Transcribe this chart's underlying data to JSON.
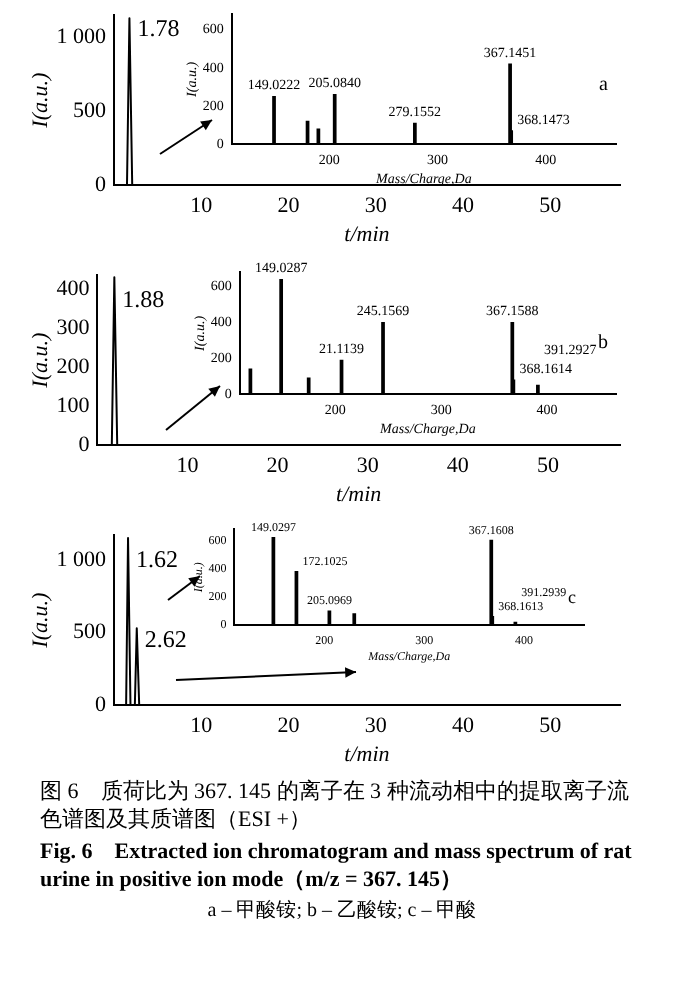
{
  "chart_data": [
    {
      "type": "line",
      "xlabel": "t/min",
      "ylabel": "I(a.u.)",
      "x": [
        0,
        1.5,
        1.78,
        2.1,
        58
      ],
      "values": [
        0,
        0,
        1130,
        0,
        0
      ],
      "color": "#000000",
      "marker": "none",
      "xlim": [
        0,
        58
      ],
      "xticks": [
        10,
        20,
        30,
        40,
        50
      ],
      "ylim": [
        0,
        1150
      ],
      "yticks": [
        0,
        500,
        {
          "value": 1000,
          "label": "1 000"
        }
      ],
      "annotations": [
        {
          "text": "1.78",
          "x": 1.78,
          "y": 1130
        }
      ]
    },
    {
      "type": "bar",
      "xlabel": "Mass/Charge,Da",
      "ylabel": "I(a.u.)",
      "x": [
        149.0222,
        180,
        190,
        205.084,
        279.1552,
        367.1451,
        368.1473
      ],
      "values": [
        250,
        120,
        80,
        260,
        110,
        420,
        70
      ],
      "color": "#000000",
      "xlim": [
        110,
        465
      ],
      "xticks": [
        200,
        300,
        400
      ],
      "ylim": [
        0,
        680
      ],
      "yticks": [
        0,
        200,
        400,
        600
      ],
      "annotations": [
        "a",
        {
          "text": "149.0222",
          "x": 149.0222,
          "y": 250
        },
        {
          "text": "205.0840",
          "x": 205.084,
          "y": 260
        },
        {
          "text": "279.1552",
          "x": 279.1552,
          "y": 110
        },
        {
          "text": "367.1451",
          "x": 367.1451,
          "y": 420
        },
        {
          "text": "368.1473",
          "x": 368.1473,
          "y": 70
        }
      ]
    },
    {
      "type": "line",
      "xlabel": "t/min",
      "ylabel": "I(a.u.)",
      "x": [
        0,
        1.6,
        1.88,
        2.2,
        58
      ],
      "values": [
        0,
        0,
        430,
        0,
        0
      ],
      "color": "#000000",
      "marker": "none",
      "xlim": [
        0,
        58
      ],
      "xticks": [
        10,
        20,
        30,
        40,
        50
      ],
      "ylim": [
        0,
        435
      ],
      "yticks": [
        0,
        100,
        200,
        300,
        400
      ],
      "annotations": [
        {
          "text": "1.88",
          "x": 1.88,
          "y": 400
        }
      ]
    },
    {
      "type": "bar",
      "xlabel": "Mass/Charge,Da",
      "ylabel": "I(a.u.)",
      "x": [
        120,
        149.0287,
        175,
        206,
        245.1569,
        367.1588,
        368.1614,
        391.2927
      ],
      "values": [
        140,
        640,
        90,
        190,
        400,
        400,
        80,
        50
      ],
      "color": "#000000",
      "xlim": [
        110,
        465
      ],
      "xticks": [
        200,
        300,
        400
      ],
      "ylim": [
        0,
        680
      ],
      "yticks": [
        0,
        200,
        400,
        600
      ],
      "annotations": [
        "b",
        {
          "text": "149.0287",
          "x": 149.0287,
          "y": 640
        },
        {
          "text": "21.1139",
          "x": 206,
          "y": 190
        },
        {
          "text": "245.1569",
          "x": 245.1569,
          "y": 400
        },
        {
          "text": "367.1588",
          "x": 367.1588,
          "y": 400
        },
        {
          "text": "368.1614",
          "x": 368.1614,
          "y": 80
        },
        {
          "text": "391.2927",
          "x": 391.2927,
          "y": 50
        }
      ]
    },
    {
      "type": "line",
      "xlabel": "t/min",
      "ylabel": "I(a.u.)",
      "x": [
        0,
        1.4,
        1.62,
        1.9,
        2.4,
        2.62,
        2.9,
        58
      ],
      "values": [
        0,
        0,
        1150,
        0,
        0,
        530,
        0,
        0
      ],
      "color": "#000000",
      "marker": "none",
      "xlim": [
        0,
        58
      ],
      "xticks": [
        10,
        20,
        30,
        40,
        50
      ],
      "ylim": [
        0,
        1170
      ],
      "yticks": [
        0,
        500,
        {
          "value": 1000,
          "label": "1 000"
        }
      ],
      "annotations": [
        {
          "text": "1.62",
          "x": 1.62,
          "y": 1080
        },
        {
          "text": "2.62",
          "x": 2.62,
          "y": 530
        }
      ]
    },
    {
      "type": "bar",
      "xlabel": "Mass/Charge,Da",
      "ylabel": "I(a.u.)",
      "x": [
        149.0297,
        172.1025,
        205.0969,
        230,
        367.1608,
        368.1613,
        391.2939
      ],
      "values": [
        620,
        380,
        100,
        80,
        600,
        60,
        20
      ],
      "color": "#000000",
      "xlim": [
        110,
        460
      ],
      "xticks": [
        200,
        300,
        400
      ],
      "ylim": [
        0,
        680
      ],
      "yticks": [
        0,
        200,
        400,
        600
      ],
      "annotations": [
        "c",
        {
          "text": "149.0297",
          "x": 149.0297,
          "y": 620
        },
        {
          "text": "172.1025",
          "x": 172.1025,
          "y": 380
        },
        {
          "text": "205.0969",
          "x": 205.0969,
          "y": 100
        },
        {
          "text": "367.1608",
          "x": 367.1608,
          "y": 600
        },
        {
          "text": "368.1613",
          "x": 368.1613,
          "y": 60
        },
        {
          "text": "391.2939",
          "x": 391.2939,
          "y": 20
        }
      ]
    },
    {
      "type": "other",
      "annotations": [
        "图 6　质荷比为 367. 145 的离子在 3 种流动相中的提取离子流色谱图及其质谱图（ESI +）",
        "Fig. 6　Extracted ion chromatogram and mass spectrum of rat urine in positive ion mode（m/z = 367. 145）",
        "a – 甲酸铵; b – 乙酸铵; c – 甲酸"
      ]
    }
  ]
}
